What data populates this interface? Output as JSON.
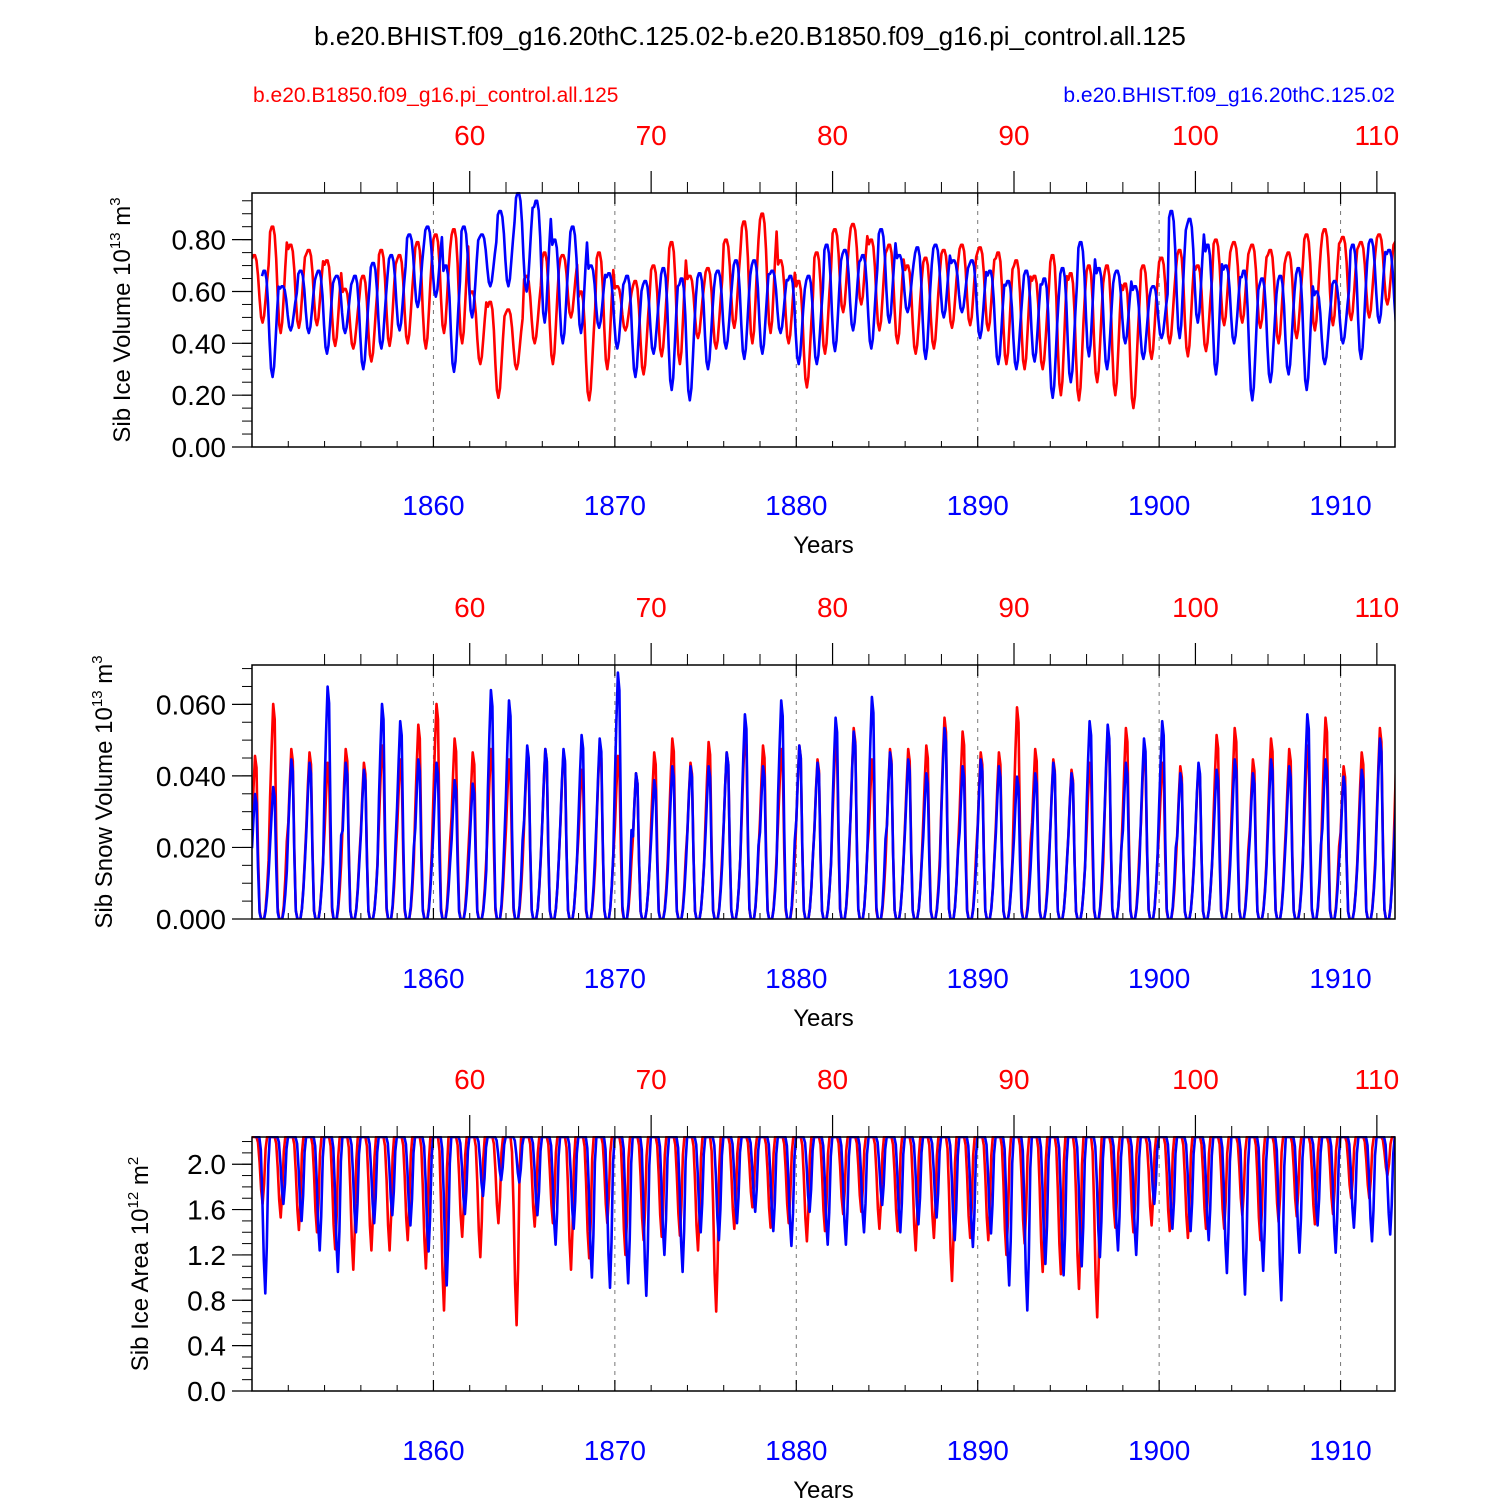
{
  "title": "b.e20.BHIST.f09_g16.20thC.125.02-b.e20.B1850.f09_g16.pi_control.all.125",
  "legend": {
    "left_label": "b.e20.B1850.f09_g16.pi_control.all.125",
    "right_label": "b.e20.BHIST.f09_g16.20thC.125.02"
  },
  "colors": {
    "control": "#ff0000",
    "hist": "#0000ff",
    "axis": "#000000",
    "grid": "#777777"
  },
  "chart_data": [
    {
      "type": "line",
      "title": "",
      "ylabel": "Sib Ice Volume 10",
      "ylabel_exp": "13",
      "ylabel_unit": " m",
      "ylabel_unit_exp": "3",
      "xlabel": "Years",
      "ylim": [
        0,
        0.98
      ],
      "yticks": [
        0.0,
        0.2,
        0.4,
        0.6,
        0.8
      ],
      "ytick_labels": [
        "0.00",
        "0.20",
        "0.40",
        "0.60",
        "0.80"
      ],
      "bottom_xlim": [
        1850,
        1913
      ],
      "bottom_ticks": [
        1860,
        1870,
        1880,
        1890,
        1900,
        1910
      ],
      "bottom_tick_labels": [
        "1860",
        "1870",
        "1880",
        "1890",
        "1900",
        "1910"
      ],
      "top_ticks": [
        60,
        70,
        80,
        90,
        100,
        110
      ],
      "top_tick_labels": [
        "60",
        "70",
        "80",
        "90",
        "100",
        "110"
      ],
      "top_offset": -1800,
      "series": [
        {
          "name": "b.e20.B1850.f09_g16.pi_control.all.125",
          "color": "#ff0000",
          "annual_max": [
            0.74,
            0.85,
            0.78,
            0.76,
            0.72,
            0.61,
            0.66,
            0.76,
            0.74,
            0.79,
            0.82,
            0.84,
            0.6,
            0.56,
            0.53,
            0.66,
            0.75,
            0.74,
            0.6,
            0.75,
            0.62,
            0.64,
            0.7,
            0.79,
            0.66,
            0.69,
            0.8,
            0.87,
            0.9,
            0.72,
            0.64,
            0.75,
            0.84,
            0.86,
            0.8,
            0.78,
            0.7,
            0.73,
            0.76,
            0.78,
            0.77,
            0.75,
            0.72,
            0.66,
            0.74,
            0.67,
            0.7,
            0.7,
            0.63,
            0.7,
            0.73,
            0.76,
            0.7,
            0.8,
            0.79,
            0.78,
            0.76,
            0.75,
            0.82,
            0.84,
            0.81,
            0.79,
            0.82,
            0.8
          ],
          "annual_min": [
            0.48,
            0.44,
            0.46,
            0.47,
            0.39,
            0.38,
            0.33,
            0.39,
            0.4,
            0.38,
            0.44,
            0.4,
            0.32,
            0.19,
            0.3,
            0.4,
            0.32,
            0.5,
            0.18,
            0.3,
            0.45,
            0.28,
            0.35,
            0.32,
            0.42,
            0.38,
            0.46,
            0.4,
            0.44,
            0.4,
            0.23,
            0.36,
            0.52,
            0.55,
            0.45,
            0.4,
            0.36,
            0.38,
            0.46,
            0.47,
            0.45,
            0.32,
            0.3,
            0.3,
            0.2,
            0.18,
            0.25,
            0.2,
            0.15,
            0.34,
            0.4,
            0.35,
            0.37,
            0.47,
            0.48,
            0.46,
            0.4,
            0.42,
            0.45,
            0.47,
            0.49,
            0.5,
            0.55,
            0.6
          ]
        },
        {
          "name": "b.e20.BHIST.f09_g16.20thC.125.02",
          "color": "#0000ff",
          "annual_max": [
            0.68,
            0.62,
            0.68,
            0.68,
            0.66,
            0.66,
            0.71,
            0.74,
            0.82,
            0.85,
            0.7,
            0.85,
            0.82,
            0.91,
            0.98,
            0.95,
            0.8,
            0.85,
            0.7,
            0.67,
            0.66,
            0.64,
            0.69,
            0.65,
            0.67,
            0.68,
            0.72,
            0.72,
            0.68,
            0.66,
            0.66,
            0.78,
            0.76,
            0.74,
            0.84,
            0.74,
            0.77,
            0.78,
            0.72,
            0.72,
            0.68,
            0.64,
            0.68,
            0.65,
            0.69,
            0.79,
            0.69,
            0.68,
            0.62,
            0.62,
            0.91,
            0.88,
            0.78,
            0.7,
            0.68,
            0.65,
            0.66,
            0.69,
            0.6,
            0.64,
            0.78,
            0.8,
            0.76,
            0.75
          ],
          "annual_min": [
            0.27,
            0.45,
            0.44,
            0.36,
            0.44,
            0.3,
            0.38,
            0.45,
            0.54,
            0.58,
            0.29,
            0.5,
            0.62,
            0.62,
            0.6,
            0.48,
            0.4,
            0.44,
            0.46,
            0.38,
            0.27,
            0.36,
            0.22,
            0.18,
            0.3,
            0.38,
            0.34,
            0.36,
            0.44,
            0.32,
            0.32,
            0.37,
            0.45,
            0.38,
            0.48,
            0.52,
            0.34,
            0.5,
            0.52,
            0.42,
            0.32,
            0.3,
            0.33,
            0.19,
            0.25,
            0.35,
            0.3,
            0.4,
            0.34,
            0.42,
            0.42,
            0.48,
            0.28,
            0.4,
            0.18,
            0.25,
            0.28,
            0.22,
            0.32,
            0.4,
            0.34,
            0.48,
            0.45,
            0.42
          ]
        }
      ]
    },
    {
      "type": "line",
      "title": "",
      "ylabel": "Sib Snow Volume 10",
      "ylabel_exp": "13",
      "ylabel_unit": " m",
      "ylabel_unit_exp": "3",
      "xlabel": "Years",
      "ylim": [
        0,
        0.071
      ],
      "yticks": [
        0.0,
        0.02,
        0.04,
        0.06
      ],
      "ytick_labels": [
        "0.000",
        "0.020",
        "0.040",
        "0.060"
      ],
      "bottom_xlim": [
        1850,
        1913
      ],
      "bottom_ticks": [
        1860,
        1870,
        1880,
        1890,
        1900,
        1910
      ],
      "bottom_tick_labels": [
        "1860",
        "1870",
        "1880",
        "1890",
        "1900",
        "1910"
      ],
      "top_ticks": [
        60,
        70,
        80,
        90,
        100,
        110
      ],
      "top_tick_labels": [
        "60",
        "70",
        "80",
        "90",
        "100",
        "110"
      ],
      "top_offset": -1800,
      "series": [
        {
          "name": "b.e20.B1850.f09_g16.pi_control.all.125",
          "color": "#ff0000",
          "annual_max": [
            0.047,
            0.062,
            0.049,
            0.048,
            0.045,
            0.049,
            0.045,
            0.05,
            0.046,
            0.056,
            0.062,
            0.052,
            0.048,
            0.049,
            0.046,
            0.048,
            0.049,
            0.048,
            0.043,
            0.05,
            0.047,
            0.042,
            0.048,
            0.052,
            0.045,
            0.051,
            0.048,
            0.054,
            0.05,
            0.049,
            0.05,
            0.046,
            0.052,
            0.055,
            0.046,
            0.049,
            0.049,
            0.05,
            0.058,
            0.054,
            0.048,
            0.048,
            0.061,
            0.049,
            0.046,
            0.043,
            0.045,
            0.054,
            0.055,
            0.049,
            0.045,
            0.044,
            0.044,
            0.053,
            0.055,
            0.046,
            0.052,
            0.049,
            0.05,
            0.058,
            0.044,
            0.048,
            0.055,
            0.061
          ],
          "annual_min": [
            0.0,
            0.0,
            0.0,
            0.0,
            0.0,
            0.0,
            0.0,
            0.0,
            0.0,
            0.0,
            0.0,
            0.0,
            0.0,
            0.0,
            0.0,
            0.0,
            0.0,
            0.0,
            0.0,
            0.0,
            0.0,
            0.0,
            0.0,
            0.0,
            0.0,
            0.0,
            0.0,
            0.0,
            0.0,
            0.0,
            0.0,
            0.0,
            0.0,
            0.0,
            0.0,
            0.0,
            0.0,
            0.0,
            0.0,
            0.0,
            0.0,
            0.0,
            0.0,
            0.0,
            0.0,
            0.0,
            0.0,
            0.0,
            0.0,
            0.0,
            0.0,
            0.0,
            0.0,
            0.0,
            0.0,
            0.0,
            0.0,
            0.0,
            0.0,
            0.0,
            0.0,
            0.0,
            0.0,
            0.0
          ]
        },
        {
          "name": "b.e20.BHIST.f09_g16.20thC.125.02",
          "color": "#0000ff",
          "annual_max": [
            0.036,
            0.038,
            0.046,
            0.045,
            0.067,
            0.045,
            0.043,
            0.062,
            0.057,
            0.046,
            0.045,
            0.04,
            0.039,
            0.066,
            0.063,
            0.05,
            0.049,
            0.049,
            0.053,
            0.052,
            0.071,
            0.042,
            0.04,
            0.044,
            0.044,
            0.044,
            0.048,
            0.059,
            0.044,
            0.063,
            0.05,
            0.045,
            0.058,
            0.054,
            0.064,
            0.048,
            0.046,
            0.042,
            0.055,
            0.044,
            0.046,
            0.044,
            0.041,
            0.042,
            0.045,
            0.042,
            0.057,
            0.056,
            0.045,
            0.052,
            0.057,
            0.042,
            0.045,
            0.043,
            0.046,
            0.042,
            0.046,
            0.044,
            0.059,
            0.046,
            0.041,
            0.043,
            0.052,
            0.048
          ],
          "annual_min": [
            0.0,
            0.0,
            0.0,
            0.0,
            0.0,
            0.0,
            0.0,
            0.0,
            0.0,
            0.0,
            0.0,
            0.0,
            0.0,
            0.0,
            0.0,
            0.0,
            0.0,
            0.0,
            0.0,
            0.0,
            0.0,
            0.0,
            0.0,
            0.0,
            0.0,
            0.0,
            0.0,
            0.0,
            0.0,
            0.0,
            0.0,
            0.0,
            0.0,
            0.0,
            0.0,
            0.0,
            0.0,
            0.0,
            0.0,
            0.0,
            0.0,
            0.0,
            0.0,
            0.0,
            0.0,
            0.0,
            0.0,
            0.0,
            0.0,
            0.0,
            0.0,
            0.0,
            0.0,
            0.0,
            0.0,
            0.0,
            0.0,
            0.0,
            0.0,
            0.0,
            0.0,
            0.0,
            0.0,
            0.0
          ]
        }
      ]
    },
    {
      "type": "line",
      "title": "",
      "ylabel": "Sib Ice Area 10",
      "ylabel_exp": "12",
      "ylabel_unit": " m",
      "ylabel_unit_exp": "2",
      "xlabel": "Years",
      "ylim": [
        0,
        2.24
      ],
      "yticks": [
        0.0,
        0.4,
        0.8,
        1.2,
        1.6,
        2.0
      ],
      "ytick_labels": [
        "0.0",
        "0.4",
        "0.8",
        "1.2",
        "1.6",
        "2.0"
      ],
      "bottom_xlim": [
        1850,
        1913
      ],
      "bottom_ticks": [
        1860,
        1870,
        1880,
        1890,
        1900,
        1910
      ],
      "bottom_tick_labels": [
        "1860",
        "1870",
        "1880",
        "1890",
        "1900",
        "1910"
      ],
      "top_ticks": [
        60,
        70,
        80,
        90,
        100,
        110
      ],
      "top_tick_labels": [
        "60",
        "70",
        "80",
        "90",
        "100",
        "110"
      ],
      "top_offset": -1800,
      "series": [
        {
          "name": "b.e20.B1850.f09_g16.pi_control.all.125",
          "color": "#ff0000",
          "annual_max": [
            2.24,
            2.24,
            2.24,
            2.24,
            2.24,
            2.24,
            2.24,
            2.24,
            2.24,
            2.24,
            2.24,
            2.24,
            2.24,
            2.24,
            2.24,
            2.24,
            2.24,
            2.24,
            2.24,
            2.24,
            2.24,
            2.24,
            2.24,
            2.24,
            2.24,
            2.24,
            2.24,
            2.24,
            2.24,
            2.24,
            2.24,
            2.24,
            2.24,
            2.24,
            2.24,
            2.24,
            2.24,
            2.24,
            2.24,
            2.24,
            2.24,
            2.24,
            2.24,
            2.24,
            2.24,
            2.24,
            2.24,
            2.24,
            2.24,
            2.24,
            2.24,
            2.24,
            2.24,
            2.24,
            2.24,
            2.24,
            2.24,
            2.24,
            2.24,
            2.24,
            2.24,
            2.24,
            2.24,
            2.24
          ],
          "annual_min": [
            1.65,
            1.53,
            1.42,
            1.4,
            1.25,
            1.07,
            1.24,
            1.24,
            1.33,
            1.08,
            0.71,
            1.36,
            1.18,
            1.48,
            0.58,
            1.45,
            1.48,
            1.07,
            1.17,
            1.48,
            1.2,
            1.33,
            1.36,
            1.37,
            1.24,
            0.7,
            1.43,
            1.62,
            1.44,
            1.48,
            1.32,
            1.41,
            1.56,
            1.58,
            1.43,
            1.41,
            1.24,
            1.35,
            0.97,
            1.35,
            1.33,
            1.2,
            1.3,
            1.05,
            1.03,
            0.9,
            0.65,
            1.44,
            1.4,
            1.46,
            1.41,
            1.35,
            1.43,
            1.43,
            1.55,
            1.33,
            1.49,
            1.54,
            1.47,
            1.56,
            1.7,
            1.7,
            1.9,
            1.92
          ]
        },
        {
          "name": "b.e20.BHIST.f09_g16.20thC.125.02",
          "color": "#0000ff",
          "annual_max": [
            2.24,
            2.24,
            2.24,
            2.24,
            2.24,
            2.24,
            2.24,
            2.24,
            2.24,
            2.24,
            2.24,
            2.24,
            2.24,
            2.24,
            2.24,
            2.24,
            2.24,
            2.24,
            2.24,
            2.24,
            2.24,
            2.24,
            2.24,
            2.24,
            2.24,
            2.24,
            2.24,
            2.24,
            2.24,
            2.24,
            2.24,
            2.24,
            2.24,
            2.24,
            2.24,
            2.24,
            2.24,
            2.24,
            2.24,
            2.24,
            2.24,
            2.24,
            2.24,
            2.24,
            2.24,
            2.24,
            2.24,
            2.24,
            2.24,
            2.24,
            2.24,
            2.24,
            2.24,
            2.24,
            2.24,
            2.24,
            2.24,
            2.24,
            2.24,
            2.24,
            2.24,
            2.24,
            2.24,
            2.24
          ],
          "annual_min": [
            0.86,
            1.65,
            1.5,
            1.24,
            1.05,
            1.4,
            1.48,
            1.55,
            1.46,
            1.23,
            0.93,
            1.56,
            1.72,
            1.86,
            1.84,
            1.55,
            1.29,
            1.43,
            1.0,
            0.91,
            0.95,
            0.84,
            1.2,
            1.05,
            1.4,
            1.33,
            1.48,
            1.58,
            1.41,
            1.28,
            1.58,
            1.29,
            1.29,
            1.4,
            1.64,
            1.4,
            1.47,
            1.53,
            1.33,
            1.27,
            1.39,
            0.93,
            0.71,
            1.12,
            1.02,
            1.1,
            1.18,
            1.24,
            1.2,
            1.65,
            1.43,
            1.41,
            1.33,
            1.04,
            0.85,
            1.06,
            0.8,
            1.22,
            1.46,
            1.22,
            1.44,
            1.32,
            1.38,
            1.55
          ]
        }
      ]
    }
  ]
}
